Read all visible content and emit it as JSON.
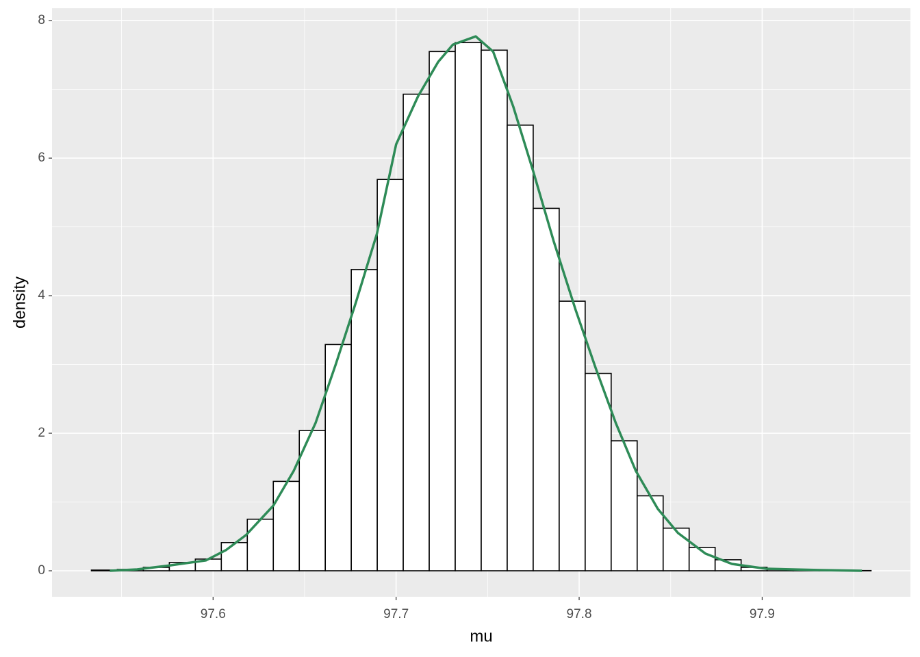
{
  "chart_data": {
    "type": "histogram",
    "x_label": "mu",
    "y_label": "density",
    "bins": [
      97.5335,
      97.5477,
      97.5619,
      97.5761,
      97.5903,
      97.6045,
      97.6187,
      97.6329,
      97.6471,
      97.6613,
      97.6755,
      97.6897,
      97.7039,
      97.7181,
      97.7323,
      97.7465,
      97.7607,
      97.7749,
      97.7891,
      97.8033,
      97.8175,
      97.8317,
      97.8459,
      97.8601,
      97.8743,
      97.8885,
      97.9027,
      97.9169,
      97.9311,
      97.9453,
      97.9595
    ],
    "values": [
      0.01,
      0.02,
      0.05,
      0.12,
      0.17,
      0.41,
      0.75,
      1.3,
      2.04,
      3.29,
      4.38,
      5.69,
      6.93,
      7.55,
      7.68,
      7.57,
      6.48,
      5.27,
      3.92,
      2.87,
      1.89,
      1.09,
      0.62,
      0.34,
      0.16,
      0.05,
      0.02,
      0.01,
      0.005,
      0.003
    ],
    "fill": "#ffffff",
    "edge_color": "#000000",
    "density": {
      "color": "#2e8b57",
      "x": [
        97.5436,
        97.5585,
        97.577,
        97.596,
        97.607,
        97.618,
        97.633,
        97.644,
        97.656,
        97.667,
        97.678,
        97.6895,
        97.7,
        97.712,
        97.723,
        97.731,
        97.7435,
        97.753,
        97.764,
        97.775,
        97.786,
        97.798,
        97.809,
        97.82,
        97.831,
        97.843,
        97.854,
        97.869,
        97.8835,
        97.902,
        97.932,
        97.9545
      ],
      "values": [
        0.0,
        0.02,
        0.08,
        0.15,
        0.3,
        0.52,
        0.95,
        1.45,
        2.15,
        3.0,
        3.9,
        4.9,
        6.2,
        6.9,
        7.4,
        7.65,
        7.77,
        7.55,
        6.75,
        5.8,
        4.8,
        3.8,
        2.95,
        2.15,
        1.45,
        0.9,
        0.55,
        0.25,
        0.1,
        0.03,
        0.01,
        0.0
      ]
    },
    "xlim": [
      97.512,
      97.981
    ],
    "ylim": [
      -0.378,
      8.18
    ],
    "xticks": [
      97.6,
      97.7,
      97.8,
      97.9
    ],
    "yticks": [
      0,
      2,
      4,
      6,
      8
    ],
    "grid": true,
    "background": "#ebebeb"
  }
}
